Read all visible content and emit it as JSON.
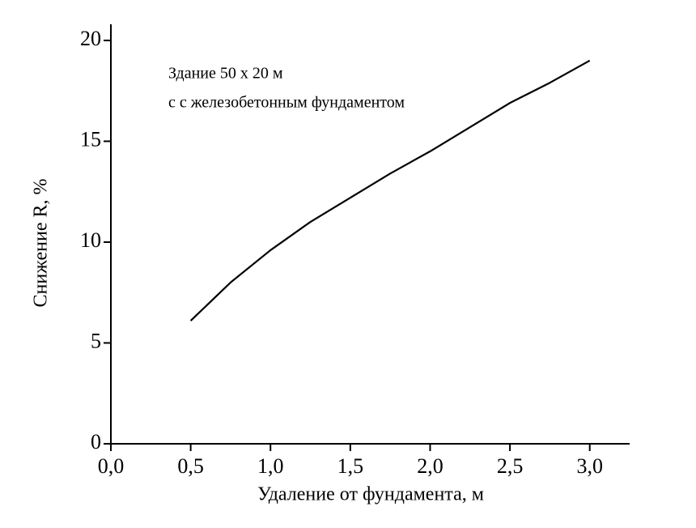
{
  "chart_data": {
    "type": "line",
    "x_label": "Удаление от фундамента, м",
    "y_label": "Снижение R, %",
    "annotations": [
      "Здание 50 х 20 м",
      "с с железобетонным фундаментом"
    ],
    "x": [
      0.5,
      0.75,
      1.0,
      1.25,
      1.5,
      1.75,
      2.0,
      2.25,
      2.5,
      2.75,
      3.0
    ],
    "series": [
      {
        "color": "#000000",
        "values": [
          6.1,
          8.0,
          9.6,
          11.0,
          12.2,
          13.4,
          14.5,
          15.7,
          16.9,
          17.9,
          19.0
        ]
      }
    ],
    "xlim": [
      0,
      3.25
    ],
    "ylim": [
      0,
      20.8
    ],
    "xticks": [
      {
        "value": 0,
        "label": "0,0"
      },
      {
        "value": 0.5,
        "label": "0,5"
      },
      {
        "value": 1.0,
        "label": "1,0"
      },
      {
        "value": 1.5,
        "label": "1,5"
      },
      {
        "value": 2.0,
        "label": "2,0"
      },
      {
        "value": 2.5,
        "label": "2,5"
      },
      {
        "value": 3.0,
        "label": "3,0"
      }
    ],
    "yticks": [
      0,
      5,
      10,
      15,
      20
    ],
    "grid": false
  }
}
